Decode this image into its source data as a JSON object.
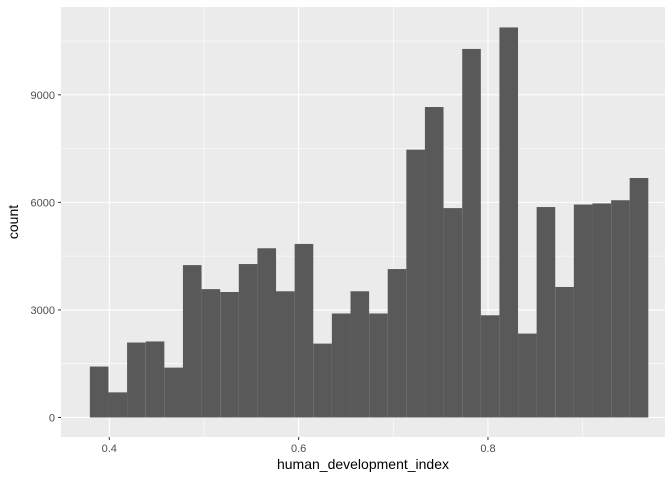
{
  "chart_data": {
    "type": "bar",
    "subtype": "histogram",
    "xlabel": "human_development_index",
    "ylabel": "count",
    "xlim": [
      0.349,
      0.987
    ],
    "ylim": [
      -545,
      11450
    ],
    "x_ticks": [
      {
        "value": 0.4,
        "label": "0.4"
      },
      {
        "value": 0.6,
        "label": "0.6"
      },
      {
        "value": 0.8,
        "label": "0.8"
      }
    ],
    "y_ticks": [
      {
        "value": 0,
        "label": "0"
      },
      {
        "value": 3000,
        "label": "3000"
      },
      {
        "value": 6000,
        "label": "6000"
      },
      {
        "value": 9000,
        "label": "9000"
      }
    ],
    "bin_width": 0.01966,
    "bins": [
      {
        "x_start": 0.3795,
        "count": 1420
      },
      {
        "x_start": 0.3992,
        "count": 700
      },
      {
        "x_start": 0.4188,
        "count": 2090
      },
      {
        "x_start": 0.4385,
        "count": 2120
      },
      {
        "x_start": 0.4582,
        "count": 1390
      },
      {
        "x_start": 0.4778,
        "count": 4250
      },
      {
        "x_start": 0.4975,
        "count": 3580
      },
      {
        "x_start": 0.5172,
        "count": 3500
      },
      {
        "x_start": 0.5368,
        "count": 4280
      },
      {
        "x_start": 0.5565,
        "count": 4720
      },
      {
        "x_start": 0.5761,
        "count": 3520
      },
      {
        "x_start": 0.5958,
        "count": 4840
      },
      {
        "x_start": 0.6155,
        "count": 2060
      },
      {
        "x_start": 0.6351,
        "count": 2900
      },
      {
        "x_start": 0.6548,
        "count": 3520
      },
      {
        "x_start": 0.6745,
        "count": 2900
      },
      {
        "x_start": 0.6941,
        "count": 4140
      },
      {
        "x_start": 0.7138,
        "count": 7470
      },
      {
        "x_start": 0.7334,
        "count": 8660
      },
      {
        "x_start": 0.7531,
        "count": 5840
      },
      {
        "x_start": 0.7728,
        "count": 10280
      },
      {
        "x_start": 0.7924,
        "count": 2850
      },
      {
        "x_start": 0.8121,
        "count": 10880
      },
      {
        "x_start": 0.8318,
        "count": 2340
      },
      {
        "x_start": 0.8514,
        "count": 5870
      },
      {
        "x_start": 0.8711,
        "count": 3640
      },
      {
        "x_start": 0.8907,
        "count": 5940
      },
      {
        "x_start": 0.9104,
        "count": 5970
      },
      {
        "x_start": 0.9301,
        "count": 6060
      },
      {
        "x_start": 0.9497,
        "count": 6680
      }
    ],
    "grid": true,
    "colors": {
      "panel_background": "#ebebeb",
      "grid_major": "#ffffff",
      "bar_fill": "#595959",
      "tick_label": "#4d4d4d",
      "tick_mark": "#333333"
    }
  }
}
